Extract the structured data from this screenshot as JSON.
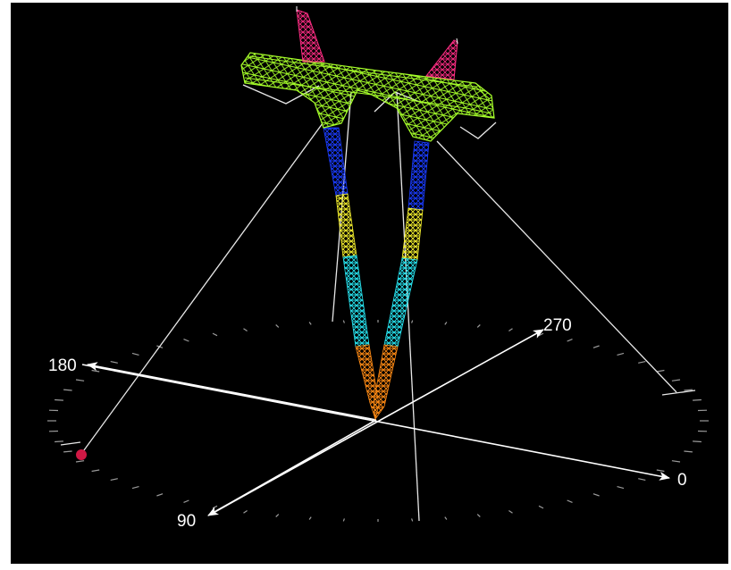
{
  "viewport": {
    "background": "#000000"
  },
  "colors": {
    "crossarm": "#a6ff2a",
    "peak": "#ff2d84",
    "leg_blue": "#1a3cff",
    "leg_yellow": "#f4ef2e",
    "leg_cyan": "#27e3ef",
    "leg_orange": "#ff8a14",
    "guy_wire": "#e8e8e8",
    "axis": "#ffffff",
    "anchor_marker": "#d01844"
  },
  "compass": {
    "labels": {
      "north": "0",
      "east": "90",
      "south": "180",
      "west": "270"
    }
  }
}
